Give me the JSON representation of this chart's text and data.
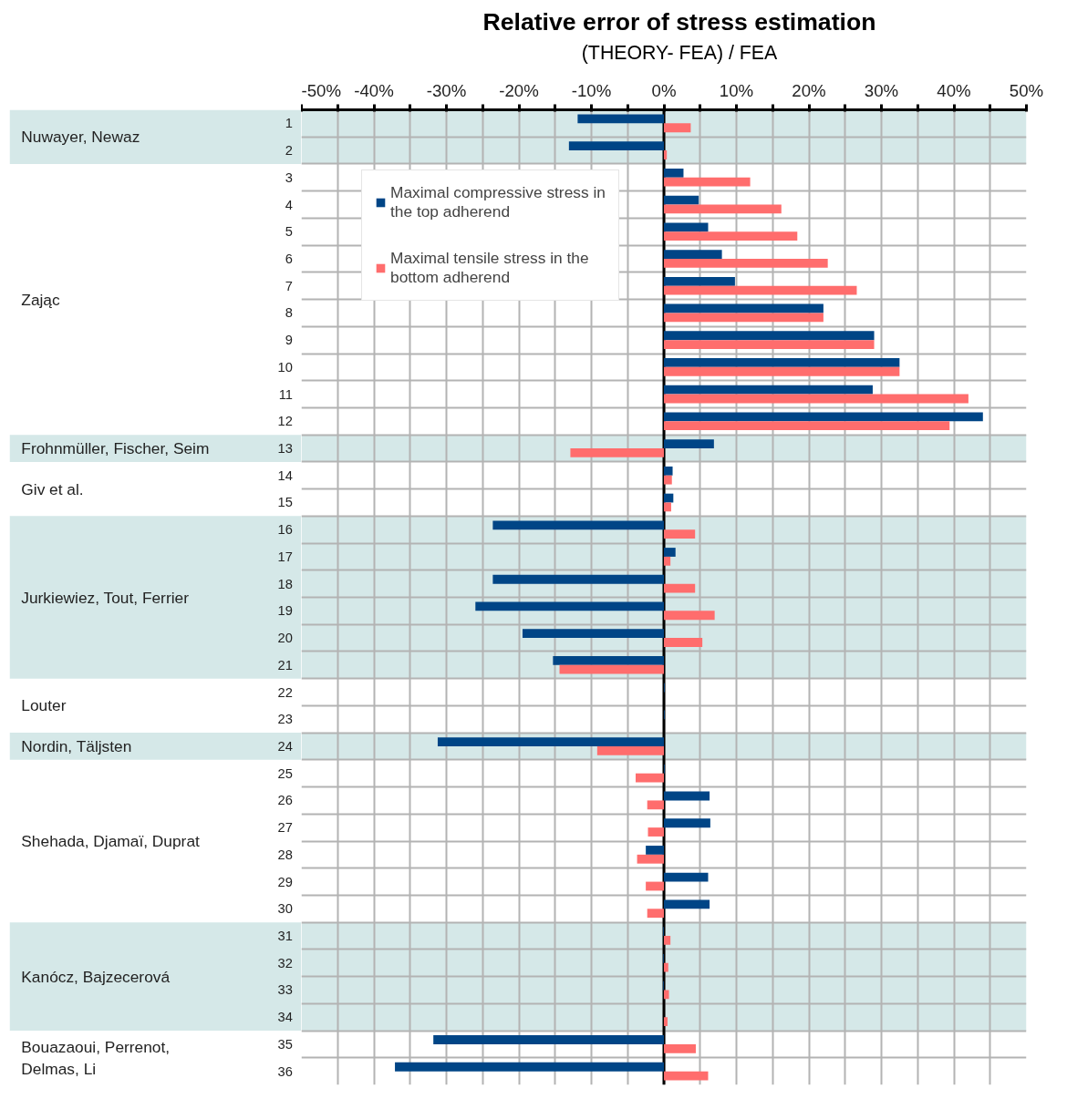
{
  "chart_data": {
    "type": "bar",
    "orientation": "horizontal",
    "title": "Relative error of stress estimation",
    "subtitle": "(THEORY- FEA) / FEA",
    "categories": [
      "1",
      "2",
      "3",
      "4",
      "5",
      "6",
      "7",
      "8",
      "9",
      "10",
      "11",
      "12",
      "13",
      "14",
      "15",
      "16",
      "17",
      "18",
      "19",
      "20",
      "21",
      "22",
      "23",
      "24",
      "25",
      "26",
      "27",
      "28",
      "29",
      "30",
      "31",
      "32",
      "33",
      "34",
      "35",
      "36"
    ],
    "series": [
      {
        "name": "Maximal compressive stress in the top adherend",
        "color": "#004586",
        "values": [
          -11.9,
          -13.1,
          2.7,
          4.8,
          6.1,
          8.0,
          9.8,
          22.0,
          29.0,
          32.5,
          28.8,
          44.0,
          6.9,
          1.2,
          1.3,
          -23.6,
          1.6,
          -23.6,
          -26.0,
          -19.5,
          -15.3,
          0.1,
          0.1,
          -31.2,
          0.1,
          6.3,
          6.4,
          -2.5,
          6.1,
          6.3,
          -0.1,
          -0.1,
          -0.1,
          0,
          -31.8,
          -37.1
        ]
      },
      {
        "name": "Maximal tensile stress in the bottom adherend",
        "color": "#ff6d6d",
        "values": [
          3.7,
          0.4,
          11.9,
          16.2,
          18.4,
          22.6,
          26.6,
          22.0,
          29.0,
          32.5,
          42.0,
          39.4,
          -12.9,
          1.1,
          1.0,
          4.3,
          0.9,
          4.3,
          7.0,
          5.3,
          -14.4,
          0,
          0,
          -9.2,
          -3.9,
          -2.3,
          -2.2,
          -3.7,
          -2.5,
          -2.3,
          0.9,
          0.6,
          0.7,
          0.5,
          4.4,
          6.1
        ]
      }
    ],
    "xlim": [
      -50,
      50
    ],
    "xticks": [
      {
        "value": -50,
        "label": "-50%"
      },
      {
        "value": -45,
        "label": null
      },
      {
        "value": -40,
        "label": "-40%"
      },
      {
        "value": -35,
        "label": null
      },
      {
        "value": -30,
        "label": "-30%"
      },
      {
        "value": -25,
        "label": null
      },
      {
        "value": -20,
        "label": "-20%"
      },
      {
        "value": -15,
        "label": null
      },
      {
        "value": -10,
        "label": "-10%"
      },
      {
        "value": -5,
        "label": null
      },
      {
        "value": 0,
        "label": "0%"
      },
      {
        "value": 5,
        "label": null
      },
      {
        "value": 10,
        "label": "10%"
      },
      {
        "value": 15,
        "label": null
      },
      {
        "value": 20,
        "label": "20%"
      },
      {
        "value": 25,
        "label": null
      },
      {
        "value": 30,
        "label": "30%"
      },
      {
        "value": 35,
        "label": null
      },
      {
        "value": 40,
        "label": "40%"
      },
      {
        "value": 45,
        "label": null
      },
      {
        "value": 50,
        "label": "50%"
      }
    ],
    "bands": [
      {
        "axis": "y",
        "from": "1",
        "to": "2",
        "color": "#d5e8e8"
      },
      {
        "axis": "y",
        "from": "13",
        "to": "13",
        "color": "#d5e8e8"
      },
      {
        "axis": "y",
        "from": "16",
        "to": "21",
        "color": "#d5e8e8"
      },
      {
        "axis": "y",
        "from": "24",
        "to": "24",
        "color": "#d5e8e8"
      },
      {
        "axis": "y",
        "from": "31",
        "to": "34",
        "color": "#d5e8e8"
      }
    ],
    "annotations": [
      "Nuwayer, Newaz",
      "Zając",
      "Frohnmüller, Fischer, Seim",
      "Giv et al.",
      "Jurkiewiez, Tout, Ferrier",
      "Louter",
      "Nordin, Täljsten",
      "Shehada, Djamaï, Duprat",
      "Kanócz, Bajzecerová",
      "Bouazaoui, Perrenot, Delmas, Li"
    ],
    "grid": true,
    "legend": "top left"
  }
}
